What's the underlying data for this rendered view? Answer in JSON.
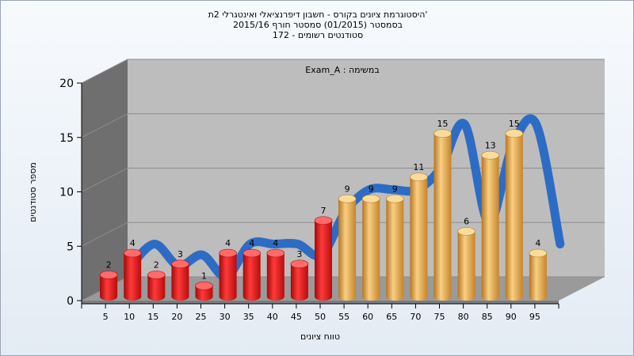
{
  "title_lines": [
    "היסטוגרמת ציונים בקורס - חשבון דיפרנציאלי ואינטגרלי 2ת'",
    "בסמסטר  (01/2015)  סמסטר חורף 2015/16",
    "172 - סטודנטים רשומים"
  ],
  "colors": {
    "fail_bar": "#e01a1a",
    "pass_bar": "#e8a43e",
    "curve": "#2d6cc4",
    "back_wall": "#bdbdbd",
    "side_wall": "#6f6f6f",
    "floor": "#9a9a9a"
  },
  "chart_data": {
    "type": "bar",
    "subtitle": "Exam_A : במשימה",
    "xlabel": "טווח ציונים",
    "ylabel": "מספר סטודנטים",
    "categories": [
      "5",
      "10",
      "15",
      "20",
      "25",
      "30",
      "35",
      "40",
      "45",
      "50",
      "55",
      "60",
      "65",
      "70",
      "75",
      "80",
      "85",
      "90",
      "95"
    ],
    "values": [
      2,
      4,
      2,
      3,
      1,
      4,
      4,
      4,
      3,
      7,
      9,
      9,
      9,
      11,
      15,
      6,
      13,
      15,
      4
    ],
    "value_labels": [
      "2",
      "4",
      "2",
      "3",
      "1",
      "4",
      "4",
      "4",
      "3",
      "7",
      "9",
      "9",
      "9",
      "11",
      "15",
      "6",
      "13",
      "15",
      "4"
    ],
    "bar_colors": [
      "red",
      "red",
      "red",
      "red",
      "red",
      "red",
      "red",
      "red",
      "red",
      "red",
      "orange",
      "orange",
      "orange",
      "orange",
      "orange",
      "orange",
      "orange",
      "orange",
      "orange"
    ],
    "yticks": [
      "0",
      "5",
      "10",
      "15",
      "20"
    ],
    "ylim": [
      0,
      20
    ],
    "grid": true,
    "smooth_curve": true
  }
}
